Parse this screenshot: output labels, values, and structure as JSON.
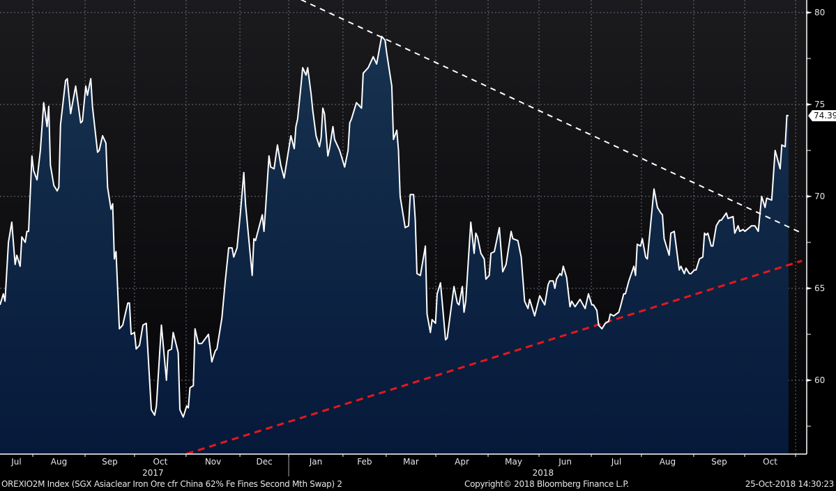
{
  "chart_data": {
    "type": "area",
    "ticker": "OREXIO2M Index",
    "series_name": "SGX Asiaclear Iron Ore cfr China 62% Fe Fines Second Mth Swap",
    "x_unit": "days since 2017-07-12",
    "ylim": [
      56,
      81
    ],
    "y_ticks": [
      60,
      65,
      70,
      75,
      80
    ],
    "y_tick_labels": [
      "60",
      "65",
      "70",
      "75",
      "80"
    ],
    "y_minor_ticks": [
      57.5,
      62.5,
      67.5,
      72.5,
      77.5
    ],
    "grid": true,
    "last_value": 74.39,
    "last_value_label": "74.39",
    "month_boundaries": [
      19.5,
      50.6,
      80,
      110.7,
      142.7,
      171.7,
      204,
      229.7,
      259.2,
      290.3,
      320.6,
      351.7,
      381.5,
      412.6,
      442.9,
      473.2
    ],
    "month_labels": [
      "Jul",
      "Aug",
      "Sep",
      "Oct",
      "Nov",
      "Dec",
      "Jan",
      "Feb",
      "Mar",
      "Apr",
      "May",
      "Jun",
      "Jul",
      "Aug",
      "Sep",
      "Oct"
    ],
    "year_separator": 171.7,
    "year_labels": [
      {
        "label": "2017",
        "center_day": 91
      },
      {
        "label": "2018",
        "center_day": 323
      }
    ],
    "points": [
      [
        0,
        64.1
      ],
      [
        2,
        64.7
      ],
      [
        3,
        64.3
      ],
      [
        5,
        67.5
      ],
      [
        7,
        68.6
      ],
      [
        9,
        66.3
      ],
      [
        10,
        66.8
      ],
      [
        12,
        66.2
      ],
      [
        13,
        67.8
      ],
      [
        15,
        67.5
      ],
      [
        16,
        68.1
      ],
      [
        17,
        68.1
      ],
      [
        19,
        72.2
      ],
      [
        20,
        71.4
      ],
      [
        22,
        70.9
      ],
      [
        24,
        72.5
      ],
      [
        26,
        75.1
      ],
      [
        28,
        73.8
      ],
      [
        29,
        74.9
      ],
      [
        30,
        71.7
      ],
      [
        32,
        70.6
      ],
      [
        34,
        70.3
      ],
      [
        35,
        70.5
      ],
      [
        36,
        73.9
      ],
      [
        39,
        76.3
      ],
      [
        40,
        76.4
      ],
      [
        42,
        74.5
      ],
      [
        44,
        75.5
      ],
      [
        45,
        76.0
      ],
      [
        48,
        74.0
      ],
      [
        49,
        74.1
      ],
      [
        51,
        76.0
      ],
      [
        52,
        75.5
      ],
      [
        54,
        76.4
      ],
      [
        55,
        74.9
      ],
      [
        58,
        72.4
      ],
      [
        59,
        72.5
      ],
      [
        61,
        73.3
      ],
      [
        63,
        72.9
      ],
      [
        64,
        70.5
      ],
      [
        66,
        69.3
      ],
      [
        67,
        69.6
      ],
      [
        68,
        66.6
      ],
      [
        69,
        67.0
      ],
      [
        71,
        62.8
      ],
      [
        73,
        63.0
      ],
      [
        74,
        63.4
      ],
      [
        76,
        64.2
      ],
      [
        77,
        64.2
      ],
      [
        78,
        62.5
      ],
      [
        80,
        62.6
      ],
      [
        81,
        61.7
      ],
      [
        83,
        61.9
      ],
      [
        85,
        63.0
      ],
      [
        87,
        63.1
      ],
      [
        90,
        58.4
      ],
      [
        92,
        58.1
      ],
      [
        93,
        58.6
      ],
      [
        96,
        63.0
      ],
      [
        99,
        60.0
      ],
      [
        100,
        61.6
      ],
      [
        102,
        61.7
      ],
      [
        103,
        62.6
      ],
      [
        106,
        61.5
      ],
      [
        107,
        58.4
      ],
      [
        109,
        58.0
      ],
      [
        111,
        58.6
      ],
      [
        112,
        58.5
      ],
      [
        113,
        59.6
      ],
      [
        115,
        59.7
      ],
      [
        116,
        62.8
      ],
      [
        118,
        62.0
      ],
      [
        120,
        62.0
      ],
      [
        124,
        62.5
      ],
      [
        126,
        61.0
      ],
      [
        128,
        61.6
      ],
      [
        129,
        61.7
      ],
      [
        132,
        63.4
      ],
      [
        134,
        65.4
      ],
      [
        136,
        67.2
      ],
      [
        138,
        67.2
      ],
      [
        139,
        66.7
      ],
      [
        141,
        67.2
      ],
      [
        143,
        69.1
      ],
      [
        145,
        71.3
      ],
      [
        146,
        69.6
      ],
      [
        150,
        65.7
      ],
      [
        151,
        67.7
      ],
      [
        152,
        67.6
      ],
      [
        156,
        69.0
      ],
      [
        157,
        68.1
      ],
      [
        158,
        69.4
      ],
      [
        160,
        72.2
      ],
      [
        161,
        71.6
      ],
      [
        163,
        71.5
      ],
      [
        165,
        72.8
      ],
      [
        167,
        71.7
      ],
      [
        169,
        71.0
      ],
      [
        173,
        73.3
      ],
      [
        175,
        72.6
      ],
      [
        176,
        73.8
      ],
      [
        177,
        74.2
      ],
      [
        179,
        76.0
      ],
      [
        180,
        77.0
      ],
      [
        182,
        76.6
      ],
      [
        183,
        77.0
      ],
      [
        185,
        75.6
      ],
      [
        186,
        74.7
      ],
      [
        188,
        73.3
      ],
      [
        190,
        72.7
      ],
      [
        191,
        73.2
      ],
      [
        192,
        74.8
      ],
      [
        193,
        74.5
      ],
      [
        195,
        72.2
      ],
      [
        196,
        72.6
      ],
      [
        198,
        73.8
      ],
      [
        199,
        73.1
      ],
      [
        201,
        72.7
      ],
      [
        202,
        72.5
      ],
      [
        205,
        71.6
      ],
      [
        207,
        72.5
      ],
      [
        208,
        74.0
      ],
      [
        209,
        74.2
      ],
      [
        211,
        74.8
      ],
      [
        212,
        75.1
      ],
      [
        215,
        74.8
      ],
      [
        216,
        76.7
      ],
      [
        219,
        77.0
      ],
      [
        222,
        77.6
      ],
      [
        224,
        77.2
      ],
      [
        227,
        78.7
      ],
      [
        229,
        78.5
      ],
      [
        230,
        77.8
      ],
      [
        233,
        76.0
      ],
      [
        234,
        73.1
      ],
      [
        236,
        73.6
      ],
      [
        237,
        72.5
      ],
      [
        238,
        70.0
      ],
      [
        241,
        68.3
      ],
      [
        243,
        68.4
      ],
      [
        244,
        70.1
      ],
      [
        246,
        70.1
      ],
      [
        247,
        68.7
      ],
      [
        248,
        65.8
      ],
      [
        250,
        65.7
      ],
      [
        253,
        67.3
      ],
      [
        254,
        63.6
      ],
      [
        256,
        62.6
      ],
      [
        257,
        63.3
      ],
      [
        259,
        63.1
      ],
      [
        260,
        64.7
      ],
      [
        262,
        65.3
      ],
      [
        265,
        62.2
      ],
      [
        266,
        62.3
      ],
      [
        267,
        63.0
      ],
      [
        270,
        65.1
      ],
      [
        272,
        64.2
      ],
      [
        273,
        64.1
      ],
      [
        275,
        65.1
      ],
      [
        276,
        63.7
      ],
      [
        277,
        64.3
      ],
      [
        280,
        68.6
      ],
      [
        282,
        66.9
      ],
      [
        283,
        68.0
      ],
      [
        284,
        67.8
      ],
      [
        286,
        66.9
      ],
      [
        288,
        66.6
      ],
      [
        289,
        65.5
      ],
      [
        291,
        65.7
      ],
      [
        292,
        66.9
      ],
      [
        294,
        67.0
      ],
      [
        297,
        68.3
      ],
      [
        299,
        65.9
      ],
      [
        301,
        66.3
      ],
      [
        304,
        68.1
      ],
      [
        305,
        67.7
      ],
      [
        308,
        67.6
      ],
      [
        310,
        66.7
      ],
      [
        312,
        64.3
      ],
      [
        314,
        63.9
      ],
      [
        315,
        64.4
      ],
      [
        318,
        63.5
      ],
      [
        321,
        64.6
      ],
      [
        324,
        64.1
      ],
      [
        326,
        65.2
      ],
      [
        327,
        65.4
      ],
      [
        329,
        65.4
      ],
      [
        330,
        65.0
      ],
      [
        331,
        65.5
      ],
      [
        333,
        65.8
      ],
      [
        334,
        65.7
      ],
      [
        335,
        66.2
      ],
      [
        337,
        65.6
      ],
      [
        339,
        64.0
      ],
      [
        340,
        64.3
      ],
      [
        342,
        64.0
      ],
      [
        345,
        64.4
      ],
      [
        348,
        63.9
      ],
      [
        350,
        64.7
      ],
      [
        352,
        64.1
      ],
      [
        353,
        64.1
      ],
      [
        355,
        63.8
      ],
      [
        356,
        63.0
      ],
      [
        358,
        62.8
      ],
      [
        360,
        63.1
      ],
      [
        362,
        63.2
      ],
      [
        363,
        63.6
      ],
      [
        365,
        63.5
      ],
      [
        368,
        63.7
      ],
      [
        369,
        64.0
      ],
      [
        371,
        64.7
      ],
      [
        372,
        64.7
      ],
      [
        374,
        65.4
      ],
      [
        377,
        66.2
      ],
      [
        378,
        65.7
      ],
      [
        379,
        67.4
      ],
      [
        381,
        67.3
      ],
      [
        382,
        67.7
      ],
      [
        384,
        66.7
      ],
      [
        385,
        66.6
      ],
      [
        389,
        70.4
      ],
      [
        391,
        69.4
      ],
      [
        393,
        69.1
      ],
      [
        394,
        69.0
      ],
      [
        395,
        67.7
      ],
      [
        398,
        66.8
      ],
      [
        399,
        68.0
      ],
      [
        401,
        68.1
      ],
      [
        404,
        66.0
      ],
      [
        405,
        66.2
      ],
      [
        407,
        65.8
      ],
      [
        408,
        66.1
      ],
      [
        410,
        65.8
      ],
      [
        411,
        65.8
      ],
      [
        413,
        66.0
      ],
      [
        414,
        66.0
      ],
      [
        416,
        66.6
      ],
      [
        418,
        66.7
      ],
      [
        419,
        68.0
      ],
      [
        420,
        67.9
      ],
      [
        421,
        68.0
      ],
      [
        423,
        67.3
      ],
      [
        424,
        67.3
      ],
      [
        426,
        68.4
      ],
      [
        428,
        68.7
      ],
      [
        429,
        68.7
      ],
      [
        432,
        69.1
      ],
      [
        433,
        68.8
      ],
      [
        436,
        68.9
      ],
      [
        437,
        68.0
      ],
      [
        439,
        68.4
      ],
      [
        440,
        68.1
      ],
      [
        442,
        68.2
      ],
      [
        443,
        68.1
      ],
      [
        447,
        68.4
      ],
      [
        449,
        68.4
      ],
      [
        451,
        68.1
      ],
      [
        453,
        70.0
      ],
      [
        455,
        69.4
      ],
      [
        456,
        69.9
      ],
      [
        459,
        69.8
      ],
      [
        461,
        72.5
      ],
      [
        464,
        71.5
      ],
      [
        465,
        72.8
      ],
      [
        467,
        72.7
      ],
      [
        468,
        74.4
      ],
      [
        469,
        74.39
      ]
    ],
    "trendlines": [
      {
        "name": "resistance",
        "color": "#ffffff",
        "from": [
          179,
          80.7
        ],
        "to": [
          477,
          68.0
        ]
      },
      {
        "name": "support",
        "color": "#e8171b",
        "from": [
          111,
          56.0
        ],
        "to": [
          477,
          66.5
        ]
      }
    ]
  },
  "footer": {
    "description": "OREXIO2M Index (SGX Asiaclear Iron Ore cfr China 62% Fe Fines Second Mth Swap) 2",
    "copyright": "Copyright© 2018 Bloomberg Finance L.P.",
    "timestamp": "25-Oct-2018 14:30:23"
  },
  "colors": {
    "line": "#ffffff",
    "area_top": "#16304f",
    "area_bottom": "#06193a",
    "bg_top": "#1b1b1e",
    "bg_bottom": "#040407"
  }
}
